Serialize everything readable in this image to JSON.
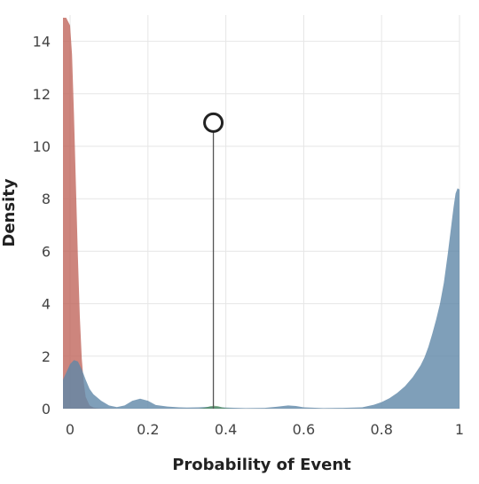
{
  "chart_data": {
    "type": "area",
    "title": "",
    "xlabel": "Probability of Event",
    "ylabel": "Density",
    "xlim": [
      0,
      1
    ],
    "ylim": [
      0,
      15
    ],
    "x_ticks": [
      {
        "value": 0,
        "label": "0"
      },
      {
        "value": 0.2,
        "label": "0.2"
      },
      {
        "value": 0.4,
        "label": "0.4"
      },
      {
        "value": 0.6,
        "label": "0.6"
      },
      {
        "value": 0.8,
        "label": "0.8"
      },
      {
        "value": 1,
        "label": "1"
      }
    ],
    "y_ticks": [
      {
        "value": 0,
        "label": "0"
      },
      {
        "value": 2,
        "label": "2"
      },
      {
        "value": 4,
        "label": "4"
      },
      {
        "value": 6,
        "label": "6"
      },
      {
        "value": 8,
        "label": "8"
      },
      {
        "value": 10,
        "label": "10"
      },
      {
        "value": 12,
        "label": "12"
      },
      {
        "value": 14,
        "label": "14"
      }
    ],
    "grid": true,
    "legend": "none",
    "series": [
      {
        "color": "#c0665c",
        "opacity": 0.8,
        "x": [
          -0.02,
          -0.01,
          0,
          0.005,
          0.01,
          0.015,
          0.02,
          0.025,
          0.03,
          0.035,
          0.04,
          0.05,
          0.06,
          0.07,
          0.09,
          0.12,
          0.15
        ],
        "y": [
          14.9,
          14.9,
          14.6,
          13.5,
          11.2,
          8.5,
          5.8,
          3.5,
          1.9,
          1.0,
          0.45,
          0.12,
          0.04,
          0.02,
          0.01,
          0.0,
          0.0
        ]
      },
      {
        "color": "#5f87a8",
        "opacity": 0.8,
        "x": [
          -0.02,
          0,
          0.01,
          0.02,
          0.03,
          0.04,
          0.05,
          0.06,
          0.08,
          0.1,
          0.12,
          0.14,
          0.16,
          0.18,
          0.2,
          0.22,
          0.25,
          0.28,
          0.3,
          0.33,
          0.36,
          0.38,
          0.4,
          0.45,
          0.5,
          0.53,
          0.56,
          0.58,
          0.6,
          0.65,
          0.7,
          0.75,
          0.78,
          0.8,
          0.82,
          0.84,
          0.86,
          0.88,
          0.9,
          0.91,
          0.92,
          0.93,
          0.94,
          0.95,
          0.96,
          0.97,
          0.98,
          0.985,
          0.99,
          0.995,
          1.0
        ],
        "y": [
          1.1,
          1.7,
          1.85,
          1.8,
          1.5,
          1.1,
          0.75,
          0.55,
          0.3,
          0.12,
          0.06,
          0.12,
          0.3,
          0.38,
          0.3,
          0.14,
          0.08,
          0.05,
          0.04,
          0.05,
          0.07,
          0.06,
          0.04,
          0.02,
          0.03,
          0.07,
          0.12,
          0.1,
          0.05,
          0.02,
          0.03,
          0.05,
          0.15,
          0.25,
          0.4,
          0.6,
          0.85,
          1.2,
          1.65,
          1.95,
          2.35,
          2.85,
          3.4,
          4.0,
          4.8,
          5.9,
          7.1,
          7.7,
          8.2,
          8.4,
          8.35
        ]
      },
      {
        "color": "#4c8c5a",
        "opacity": 0.7,
        "x": [
          0.33,
          0.34,
          0.35,
          0.36,
          0.37,
          0.38,
          0.39,
          0.4,
          0.41,
          0.42
        ],
        "y": [
          0,
          0.02,
          0.05,
          0.09,
          0.11,
          0.09,
          0.05,
          0.02,
          0.01,
          0
        ]
      }
    ],
    "marker": {
      "x": 0.368,
      "y": 10.9
    }
  }
}
